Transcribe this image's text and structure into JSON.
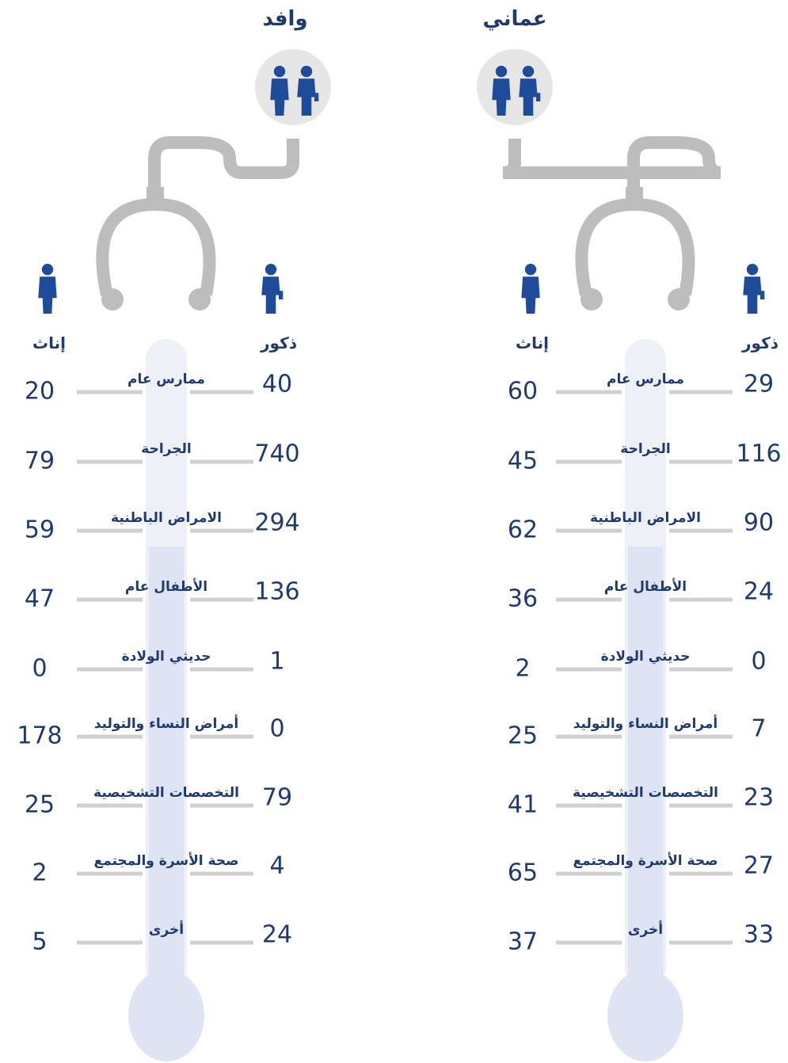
{
  "panels": [
    {
      "title": "وافد",
      "male_label": "ذكور",
      "female_label": "إناث",
      "rows": [
        {
          "specialty": "ممارس عام",
          "male": 40,
          "female": 20
        },
        {
          "specialty": "الجراحة",
          "male": 740,
          "female": 79
        },
        {
          "specialty": "الامراض الباطنية",
          "male": 294,
          "female": 59
        },
        {
          "specialty": "الأطفال عام",
          "male": 136,
          "female": 47
        },
        {
          "specialty": "حديثي الولادة",
          "male": 1,
          "female": 0
        },
        {
          "specialty": "أمراض النساء والتوليد",
          "male": 0,
          "female": 178
        },
        {
          "specialty": "التخصصات التشخيصية",
          "male": 79,
          "female": 25
        },
        {
          "specialty": "صحة الأسرة والمجتمع",
          "male": 4,
          "female": 2
        },
        {
          "specialty": "أخرى",
          "male": 24,
          "female": 5
        }
      ]
    },
    {
      "title": "عماني",
      "male_label": "ذكور",
      "female_label": "إناث",
      "rows": [
        {
          "specialty": "ممارس عام",
          "male": 29,
          "female": 60
        },
        {
          "specialty": "الجراحة",
          "male": 116,
          "female": 45
        },
        {
          "specialty": "الامراض الباطنية",
          "male": 90,
          "female": 62
        },
        {
          "specialty": "الأطفال عام",
          "male": 24,
          "female": 36
        },
        {
          "specialty": "حديثي الولادة",
          "male": 0,
          "female": 2
        },
        {
          "specialty": "أمراض النساء والتوليد",
          "male": 7,
          "female": 25
        },
        {
          "specialty": "التخصصات التشخيصية",
          "male": 23,
          "female": 41
        },
        {
          "specialty": "صحة الأسرة والمجتمع",
          "male": 27,
          "female": 65
        },
        {
          "specialty": "أخرى",
          "male": 33,
          "female": 37
        }
      ]
    }
  ]
}
